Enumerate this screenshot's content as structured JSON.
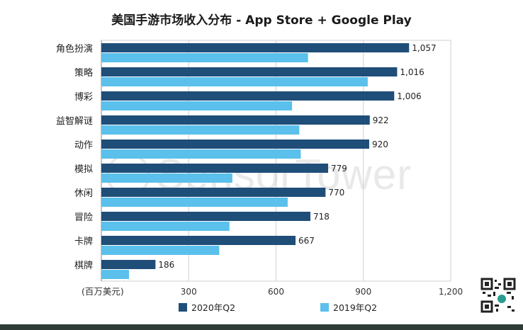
{
  "watermark": {
    "text": "SensorTower"
  },
  "chart_data": {
    "type": "bar",
    "orientation": "horizontal",
    "title": "美国手游市场收入分布 - App Store + Google Play",
    "xlabel": "(百万美元)",
    "ylabel": "",
    "xlim": [
      0,
      1200
    ],
    "xticks": [
      300,
      600,
      900,
      1200
    ],
    "xtick_labels": [
      "300",
      "600",
      "900",
      "1,200"
    ],
    "grid": true,
    "legend_position": "bottom",
    "categories": [
      "角色扮演",
      "策略",
      "博彩",
      "益智解谜",
      "动作",
      "模拟",
      "休闲",
      "冒险",
      "卡牌",
      "棋牌"
    ],
    "series": [
      {
        "name": "2020年Q2",
        "color": "#1f4e79",
        "values": [
          1057,
          1016,
          1006,
          922,
          920,
          779,
          770,
          718,
          667,
          186
        ],
        "data_labels": [
          "1,057",
          "1,016",
          "1,006",
          "922",
          "920",
          "779",
          "770",
          "718",
          "667",
          "186"
        ]
      },
      {
        "name": "2019年Q2",
        "color": "#5bc0eb",
        "values": [
          710,
          915,
          655,
          680,
          685,
          450,
          640,
          440,
          405,
          95
        ]
      }
    ]
  }
}
